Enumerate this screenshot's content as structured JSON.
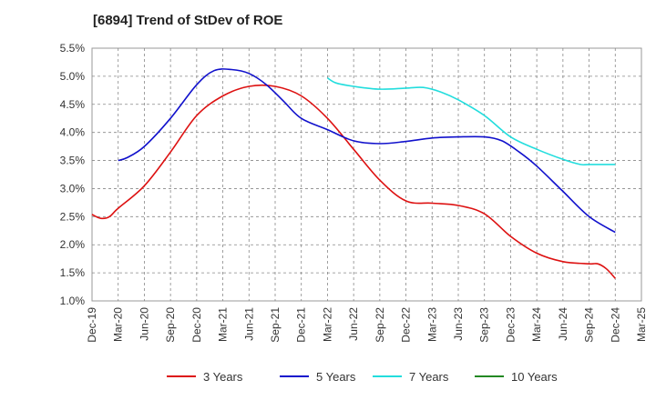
{
  "chart_data": {
    "type": "line",
    "title": "[6894]  Trend of StDev of ROE",
    "xlabel": "",
    "ylabel": "",
    "x_ticks": [
      "Dec-19",
      "Mar-20",
      "Jun-20",
      "Sep-20",
      "Dec-20",
      "Mar-21",
      "Jun-21",
      "Sep-21",
      "Dec-21",
      "Mar-22",
      "Jun-22",
      "Sep-22",
      "Dec-22",
      "Mar-23",
      "Jun-23",
      "Sep-23",
      "Dec-23",
      "Mar-24",
      "Jun-24",
      "Sep-24",
      "Dec-24",
      "Mar-25"
    ],
    "y_ticks": [
      "1.0%",
      "1.5%",
      "2.0%",
      "2.5%",
      "3.0%",
      "3.5%",
      "4.0%",
      "4.5%",
      "5.0%",
      "5.5%"
    ],
    "ylim": [
      1.0,
      5.5
    ],
    "grid": true,
    "legend_position": "bottom",
    "series": [
      {
        "name": "3 Years",
        "color": "#dd1111",
        "points": [
          [
            "Dec-19",
            2.54
          ],
          [
            "Jan-20",
            2.47
          ],
          [
            "Feb-20",
            2.5
          ],
          [
            "Mar-20",
            2.65
          ],
          [
            "Jun-20",
            3.05
          ],
          [
            "Sep-20",
            3.65
          ],
          [
            "Dec-20",
            4.3
          ],
          [
            "Mar-21",
            4.65
          ],
          [
            "Jun-21",
            4.82
          ],
          [
            "Sep-21",
            4.82
          ],
          [
            "Dec-21",
            4.65
          ],
          [
            "Mar-22",
            4.25
          ],
          [
            "Jun-22",
            3.7
          ],
          [
            "Sep-22",
            3.15
          ],
          [
            "Dec-22",
            2.78
          ],
          [
            "Mar-23",
            2.74
          ],
          [
            "Jun-23",
            2.7
          ],
          [
            "Sep-23",
            2.55
          ],
          [
            "Dec-23",
            2.15
          ],
          [
            "Mar-24",
            1.85
          ],
          [
            "Jun-24",
            1.7
          ],
          [
            "Sep-24",
            1.66
          ],
          [
            "Oct-24",
            1.66
          ],
          [
            "Nov-24",
            1.57
          ],
          [
            "Dec-24",
            1.4
          ]
        ]
      },
      {
        "name": "5 Years",
        "color": "#1111cc",
        "points": [
          [
            "Mar-20",
            3.5
          ],
          [
            "Apr-20",
            3.55
          ],
          [
            "Jun-20",
            3.75
          ],
          [
            "Sep-20",
            4.25
          ],
          [
            "Dec-20",
            4.85
          ],
          [
            "Feb-21",
            5.1
          ],
          [
            "Apr-21",
            5.12
          ],
          [
            "Jun-21",
            5.05
          ],
          [
            "Aug-21",
            4.85
          ],
          [
            "Oct-21",
            4.55
          ],
          [
            "Dec-21",
            4.25
          ],
          [
            "Mar-22",
            4.05
          ],
          [
            "Jun-22",
            3.85
          ],
          [
            "Sep-22",
            3.8
          ],
          [
            "Dec-22",
            3.84
          ],
          [
            "Mar-23",
            3.9
          ],
          [
            "Jun-23",
            3.92
          ],
          [
            "Sep-23",
            3.92
          ],
          [
            "Nov-23",
            3.85
          ],
          [
            "Jan-24",
            3.65
          ],
          [
            "Mar-24",
            3.4
          ],
          [
            "Jun-24",
            2.95
          ],
          [
            "Sep-24",
            2.5
          ],
          [
            "Dec-24",
            2.22
          ]
        ]
      },
      {
        "name": "7 Years",
        "color": "#22dddd",
        "points": [
          [
            "Mar-22",
            4.97
          ],
          [
            "Apr-22",
            4.88
          ],
          [
            "Jun-22",
            4.82
          ],
          [
            "Sep-22",
            4.77
          ],
          [
            "Dec-22",
            4.79
          ],
          [
            "Feb-23",
            4.8
          ],
          [
            "Apr-23",
            4.72
          ],
          [
            "Jun-23",
            4.58
          ],
          [
            "Sep-23",
            4.3
          ],
          [
            "Dec-23",
            3.92
          ],
          [
            "Mar-24",
            3.7
          ],
          [
            "Jun-24",
            3.52
          ],
          [
            "Aug-24",
            3.43
          ],
          [
            "Sep-24",
            3.43
          ],
          [
            "Dec-24",
            3.43
          ]
        ]
      },
      {
        "name": "10 Years",
        "color": "#228822",
        "points": []
      }
    ]
  }
}
